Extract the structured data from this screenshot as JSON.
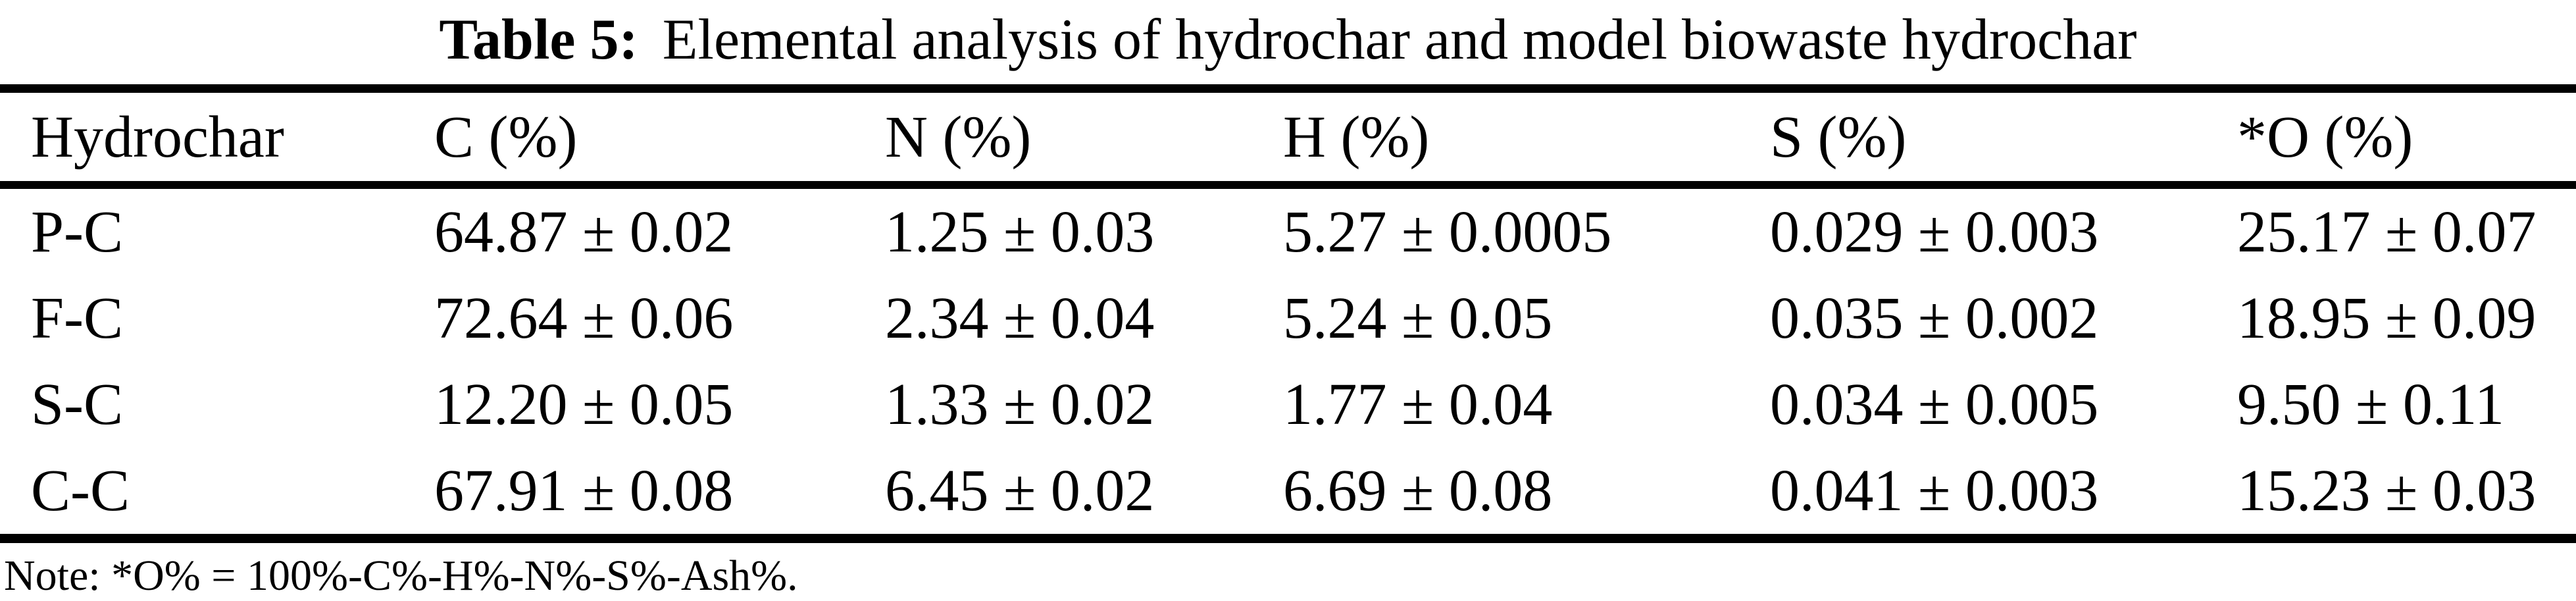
{
  "page": {
    "background": "#ffffff",
    "text_color": "#000000",
    "rule_color": "#000000"
  },
  "caption": {
    "label": "Table 5:",
    "text": "Elemental analysis of hydrochar and model biowaste hydrochar"
  },
  "table": {
    "columns": [
      "Hydrochar",
      "C (%)",
      "N (%)",
      "H (%)",
      "S (%)",
      "*O (%)"
    ],
    "rows": [
      [
        "P-C",
        "64.87 ± 0.02",
        "1.25 ± 0.03",
        "5.27 ± 0.0005",
        "0.029 ± 0.003",
        "25.17 ± 0.07"
      ],
      [
        "F-C",
        "72.64 ± 0.06",
        "2.34 ± 0.04",
        "5.24 ± 0.05",
        "0.035 ± 0.002",
        "18.95 ± 0.09"
      ],
      [
        "S-C",
        "12.20 ± 0.05",
        "1.33 ± 0.02",
        "1.77 ± 0.04",
        "0.034 ± 0.005",
        "9.50 ± 0.11"
      ],
      [
        "C-C",
        "67.91 ± 0.08",
        "6.45 ± 0.02",
        "6.69 ± 0.08",
        "0.041 ± 0.003",
        "15.23 ± 0.03"
      ]
    ],
    "note": "Note: *O% = 100%-C%-H%-N%-S%-Ash%."
  }
}
